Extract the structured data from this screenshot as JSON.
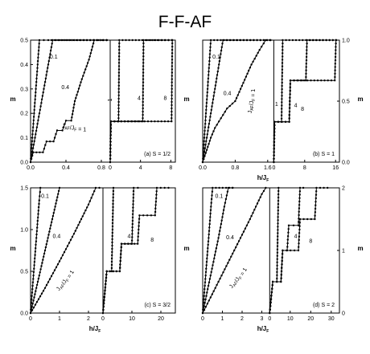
{
  "figure_title": "F-F-AF",
  "chart_data": [
    {
      "type": "line",
      "panel_label": "(a) S = 1/2",
      "ylabel": "m",
      "xlabel": "",
      "ylim": [
        0,
        0.5
      ],
      "left_xlim": [
        0,
        0.9
      ],
      "right_xlim": [
        0,
        8.6
      ],
      "left_xticks": [
        "0.0",
        "0.4",
        "0.8"
      ],
      "right_xticks": [
        "0",
        "4",
        "8"
      ],
      "yticks": [
        "0.0",
        "0.1",
        "0.2",
        "0.3",
        "0.4",
        "0.5"
      ],
      "yticks_right": [],
      "left_series": [
        {
          "name": "0.1",
          "points": [
            [
              0,
              0
            ],
            [
              0.02,
              0.1
            ],
            [
              0.04,
              0.2
            ],
            [
              0.06,
              0.3
            ],
            [
              0.08,
              0.4
            ],
            [
              0.1,
              0.5
            ],
            [
              0.2,
              0.5
            ],
            [
              0.9,
              0.5
            ]
          ]
        },
        {
          "name": "0.4",
          "points": [
            [
              0,
              0
            ],
            [
              0.05,
              0.1
            ],
            [
              0.1,
              0.2
            ],
            [
              0.15,
              0.3
            ],
            [
              0.2,
              0.4
            ],
            [
              0.25,
              0.5
            ],
            [
              0.9,
              0.5
            ]
          ]
        },
        {
          "name": "J_AF/J_F = 1",
          "points": [
            [
              0,
              0
            ],
            [
              0.03,
              0.04
            ],
            [
              0.14,
              0.04
            ],
            [
              0.18,
              0.085
            ],
            [
              0.26,
              0.085
            ],
            [
              0.3,
              0.13
            ],
            [
              0.36,
              0.13
            ],
            [
              0.4,
              0.17
            ],
            [
              0.46,
              0.17
            ],
            [
              0.5,
              0.25
            ],
            [
              0.58,
              0.34
            ],
            [
              0.66,
              0.42
            ],
            [
              0.72,
              0.5
            ],
            [
              0.9,
              0.5
            ]
          ]
        }
      ],
      "right_series": [
        {
          "name": "1",
          "points": [
            [
              0,
              0
            ],
            [
              0.1,
              0.167
            ],
            [
              1.1,
              0.167
            ],
            [
              1.2,
              0.5
            ],
            [
              8.6,
              0.5
            ]
          ]
        },
        {
          "name": "4",
          "points": [
            [
              0,
              0
            ],
            [
              0.1,
              0.167
            ],
            [
              4.3,
              0.167
            ],
            [
              4.4,
              0.5
            ],
            [
              8.6,
              0.5
            ]
          ]
        },
        {
          "name": "8",
          "points": [
            [
              0,
              0
            ],
            [
              0.1,
              0.167
            ],
            [
              8.1,
              0.167
            ],
            [
              8.2,
              0.5
            ],
            [
              8.6,
              0.5
            ]
          ]
        }
      ],
      "annotations": [
        "0.1",
        "0.4",
        "J_AF/J_F = 1",
        "1",
        "4",
        "8"
      ]
    },
    {
      "type": "line",
      "panel_label": "(b) S = 1",
      "ylabel": "m",
      "xlabel": "h/J_F",
      "ylim": [
        0,
        1.0
      ],
      "left_xlim": [
        0,
        1.75
      ],
      "right_xlim": [
        0,
        17
      ],
      "left_xticks": [
        "0.0",
        "0.8",
        "1.6"
      ],
      "right_xticks": [
        "0",
        "8",
        "16"
      ],
      "yticks": [],
      "yticks_right": [
        "0.0",
        "0.5",
        "1.0"
      ],
      "left_series": [
        {
          "name": "0.1",
          "points": [
            [
              0,
              0
            ],
            [
              0.04,
              0.2
            ],
            [
              0.08,
              0.4
            ],
            [
              0.12,
              0.6
            ],
            [
              0.16,
              0.8
            ],
            [
              0.2,
              1.0
            ],
            [
              1.75,
              1.0
            ]
          ]
        },
        {
          "name": "0.4",
          "points": [
            [
              0,
              0
            ],
            [
              0.1,
              0.2
            ],
            [
              0.2,
              0.4
            ],
            [
              0.3,
              0.6
            ],
            [
              0.4,
              0.8
            ],
            [
              0.5,
              1.0
            ],
            [
              1.75,
              1.0
            ]
          ]
        },
        {
          "name": "J_AF/J_F = 1",
          "points": [
            [
              0,
              0
            ],
            [
              0.1,
              0.1
            ],
            [
              0.2,
              0.2
            ],
            [
              0.3,
              0.28
            ],
            [
              0.45,
              0.36
            ],
            [
              0.6,
              0.44
            ],
            [
              0.8,
              0.5
            ],
            [
              1.0,
              0.65
            ],
            [
              1.2,
              0.8
            ],
            [
              1.4,
              0.92
            ],
            [
              1.55,
              1.0
            ],
            [
              1.75,
              1.0
            ]
          ]
        }
      ],
      "right_series": [
        {
          "name": "1",
          "points": [
            [
              0,
              0
            ],
            [
              0.2,
              0.33
            ],
            [
              2.0,
              0.33
            ],
            [
              2.3,
              1.0
            ],
            [
              17,
              1.0
            ]
          ]
        },
        {
          "name": "4",
          "points": [
            [
              0,
              0
            ],
            [
              0.2,
              0.33
            ],
            [
              4.0,
              0.33
            ],
            [
              4.3,
              0.67
            ],
            [
              8.3,
              0.67
            ],
            [
              8.6,
              1.0
            ],
            [
              17,
              1.0
            ]
          ]
        },
        {
          "name": "8",
          "points": [
            [
              0,
              0
            ],
            [
              0.2,
              0.33
            ],
            [
              4.0,
              0.33
            ],
            [
              4.3,
              0.67
            ],
            [
              15.8,
              0.67
            ],
            [
              16.1,
              1.0
            ],
            [
              17,
              1.0
            ]
          ]
        }
      ],
      "annotations": [
        "0.1",
        "0.4",
        "J_AF/J_F = 1",
        "1",
        "4",
        "8"
      ]
    },
    {
      "type": "line",
      "panel_label": "(c) S = 3/2",
      "ylabel": "m",
      "xlabel": "h/J_F",
      "ylim": [
        0,
        1.5
      ],
      "left_xlim": [
        0,
        2.5
      ],
      "right_xlim": [
        0,
        25
      ],
      "left_xticks": [
        "0",
        "1",
        "2"
      ],
      "right_xticks": [
        "0",
        "10",
        "20"
      ],
      "yticks": [
        "0.0",
        "0.5",
        "1.0",
        "1.5"
      ],
      "yticks_right": [],
      "left_series": [
        {
          "name": "0.1",
          "points": [
            [
              0,
              0
            ],
            [
              0.1,
              0.45
            ],
            [
              0.2,
              0.9
            ],
            [
              0.3,
              1.35
            ],
            [
              0.34,
              1.5
            ],
            [
              0.5,
              1.5
            ]
          ]
        },
        {
          "name": "0.4",
          "points": [
            [
              0,
              0
            ],
            [
              0.3,
              0.45
            ],
            [
              0.6,
              0.9
            ],
            [
              0.9,
              1.35
            ],
            [
              1.0,
              1.5
            ],
            [
              1.2,
              1.5
            ]
          ]
        },
        {
          "name": "J_AF/J_F = 1",
          "points": [
            [
              0,
              0
            ],
            [
              0.5,
              0.3
            ],
            [
              1.0,
              0.62
            ],
            [
              1.5,
              0.95
            ],
            [
              2.0,
              1.3
            ],
            [
              2.25,
              1.5
            ],
            [
              2.5,
              1.5
            ]
          ]
        }
      ],
      "right_series": [
        {
          "name": "1",
          "points": [
            [
              0,
              0
            ],
            [
              1.3,
              0.5
            ],
            [
              3.0,
              0.5
            ],
            [
              3.6,
              1.5
            ],
            [
              4.5,
              1.5
            ]
          ]
        },
        {
          "name": "4",
          "points": [
            [
              0,
              0
            ],
            [
              1.3,
              0.5
            ],
            [
              5.8,
              0.5
            ],
            [
              6.4,
              0.83
            ],
            [
              10.0,
              0.83
            ],
            [
              10.6,
              1.5
            ],
            [
              13.5,
              1.5
            ]
          ]
        },
        {
          "name": "8",
          "points": [
            [
              0,
              0
            ],
            [
              1.3,
              0.5
            ],
            [
              5.8,
              0.5
            ],
            [
              6.4,
              0.83
            ],
            [
              12.0,
              0.83
            ],
            [
              12.6,
              1.17
            ],
            [
              18.0,
              1.17
            ],
            [
              18.6,
              1.5
            ],
            [
              24,
              1.5
            ]
          ]
        }
      ],
      "annotations": [
        "0.1",
        "0.4",
        "J_AF/J_F = 1",
        "4",
        "8"
      ]
    },
    {
      "type": "line",
      "panel_label": "(d) S = 2",
      "ylabel": "m",
      "xlabel": "h/J_F",
      "ylim": [
        0,
        2.0
      ],
      "left_xlim": [
        0,
        3.4
      ],
      "right_xlim": [
        0,
        34
      ],
      "left_xticks": [
        "0",
        "1",
        "2",
        "3"
      ],
      "right_xticks": [
        "0",
        "10",
        "20",
        "30"
      ],
      "yticks": [],
      "yticks_right": [
        "0",
        "1",
        "2"
      ],
      "left_series": [
        {
          "name": "0.1",
          "points": [
            [
              0,
              0
            ],
            [
              0.15,
              0.6
            ],
            [
              0.3,
              1.2
            ],
            [
              0.42,
              1.7
            ],
            [
              0.5,
              2.0
            ],
            [
              1.7,
              2.0
            ]
          ]
        },
        {
          "name": "0.4",
          "points": [
            [
              0,
              0
            ],
            [
              0.4,
              0.6
            ],
            [
              0.8,
              1.2
            ],
            [
              1.1,
              1.7
            ],
            [
              1.3,
              2.0
            ],
            [
              1.7,
              2.0
            ]
          ]
        },
        {
          "name": "J_AF/J_F = 1",
          "points": [
            [
              0,
              0
            ],
            [
              0.8,
              0.5
            ],
            [
              1.6,
              1.0
            ],
            [
              2.4,
              1.5
            ],
            [
              3.0,
              1.9
            ],
            [
              3.2,
              2.0
            ],
            [
              3.4,
              2.0
            ]
          ]
        }
      ],
      "right_series": [
        {
          "name": "1",
          "points": [
            [
              0,
              0
            ],
            [
              1.5,
              0.5
            ],
            [
              3.5,
              0.5
            ],
            [
              4.3,
              2.0
            ],
            [
              5.5,
              2.0
            ]
          ]
        },
        {
          "name": "4",
          "points": [
            [
              0,
              0
            ],
            [
              1.5,
              0.5
            ],
            [
              5.5,
              0.5
            ],
            [
              6.3,
              1.0
            ],
            [
              8.5,
              1.0
            ],
            [
              9.3,
              1.4
            ],
            [
              14.0,
              1.4
            ],
            [
              14.8,
              2.0
            ],
            [
              18,
              2.0
            ]
          ]
        },
        {
          "name": "8",
          "points": [
            [
              0,
              0
            ],
            [
              1.5,
              0.5
            ],
            [
              5.5,
              0.5
            ],
            [
              6.3,
              1.0
            ],
            [
              14.0,
              1.0
            ],
            [
              14.8,
              1.5
            ],
            [
              22.0,
              1.5
            ],
            [
              22.8,
              2.0
            ],
            [
              30,
              2.0
            ]
          ]
        }
      ],
      "annotations": [
        "0.1",
        "0.4",
        "J_AF/J_F = 1",
        "4",
        "8"
      ]
    }
  ]
}
